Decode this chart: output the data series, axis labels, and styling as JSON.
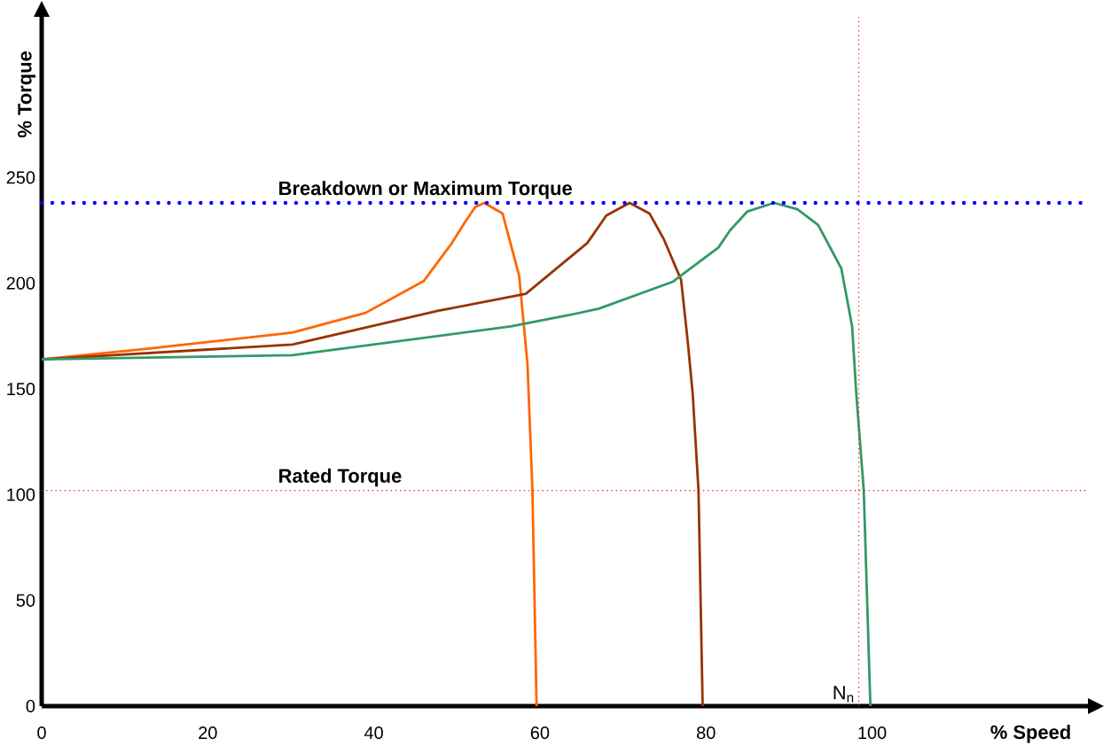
{
  "chart_data": {
    "type": "line",
    "xlabel": "% Speed",
    "ylabel": "% Torque",
    "xlim": [
      0,
      126
    ],
    "ylim": [
      0,
      326
    ],
    "xticks": [
      0,
      20,
      40,
      60,
      80,
      100
    ],
    "yticks": [
      0,
      50,
      100,
      150,
      200,
      250
    ],
    "marker": "none",
    "line_style": "solid",
    "series": [
      {
        "color": "#ff6600",
        "x": [
          0,
          12.7,
          30.2,
          39,
          46,
          49.4,
          51,
          52.2,
          53.3,
          55.5,
          57.5,
          58.5,
          59.1,
          59.6
        ],
        "values": [
          164,
          169,
          176.7,
          186,
          201,
          219,
          229,
          236,
          238,
          233,
          203.6,
          162,
          102,
          0
        ]
      },
      {
        "color": "#993300",
        "x": [
          0,
          30.2,
          47.8,
          58.3,
          65.7,
          68,
          70.8,
          73.2,
          74.9,
          77,
          77.8,
          78.4,
          79.1,
          79.6
        ],
        "values": [
          164,
          171,
          187,
          195,
          219,
          232,
          238,
          233,
          221,
          201.6,
          172.6,
          147.8,
          102,
          0
        ]
      },
      {
        "color": "#339966",
        "x": [
          0,
          30.2,
          56.5,
          63.6,
          67.1,
          76,
          81.5,
          82.9,
          85,
          88.2,
          91,
          93.5,
          96.3,
          97.6,
          98.1,
          99,
          99.8
        ],
        "values": [
          164,
          166,
          179.6,
          185,
          188,
          200.7,
          216.9,
          225,
          234,
          238,
          235,
          227.6,
          207,
          179.6,
          147.8,
          102,
          0
        ]
      }
    ],
    "ref_lines": [
      {
        "axis": "y",
        "value": 238,
        "label": "Breakdown or Maximum Torque",
        "color": "#0000ff",
        "line_style": "dotted"
      },
      {
        "axis": "y",
        "value": 102,
        "label": "Rated Torque",
        "color": "#ff0000",
        "line_style": "dotted"
      },
      {
        "axis": "x",
        "value": 98.4,
        "label": "N$_{n}$",
        "color": "#ff0000",
        "line_style": "dotted"
      }
    ]
  }
}
